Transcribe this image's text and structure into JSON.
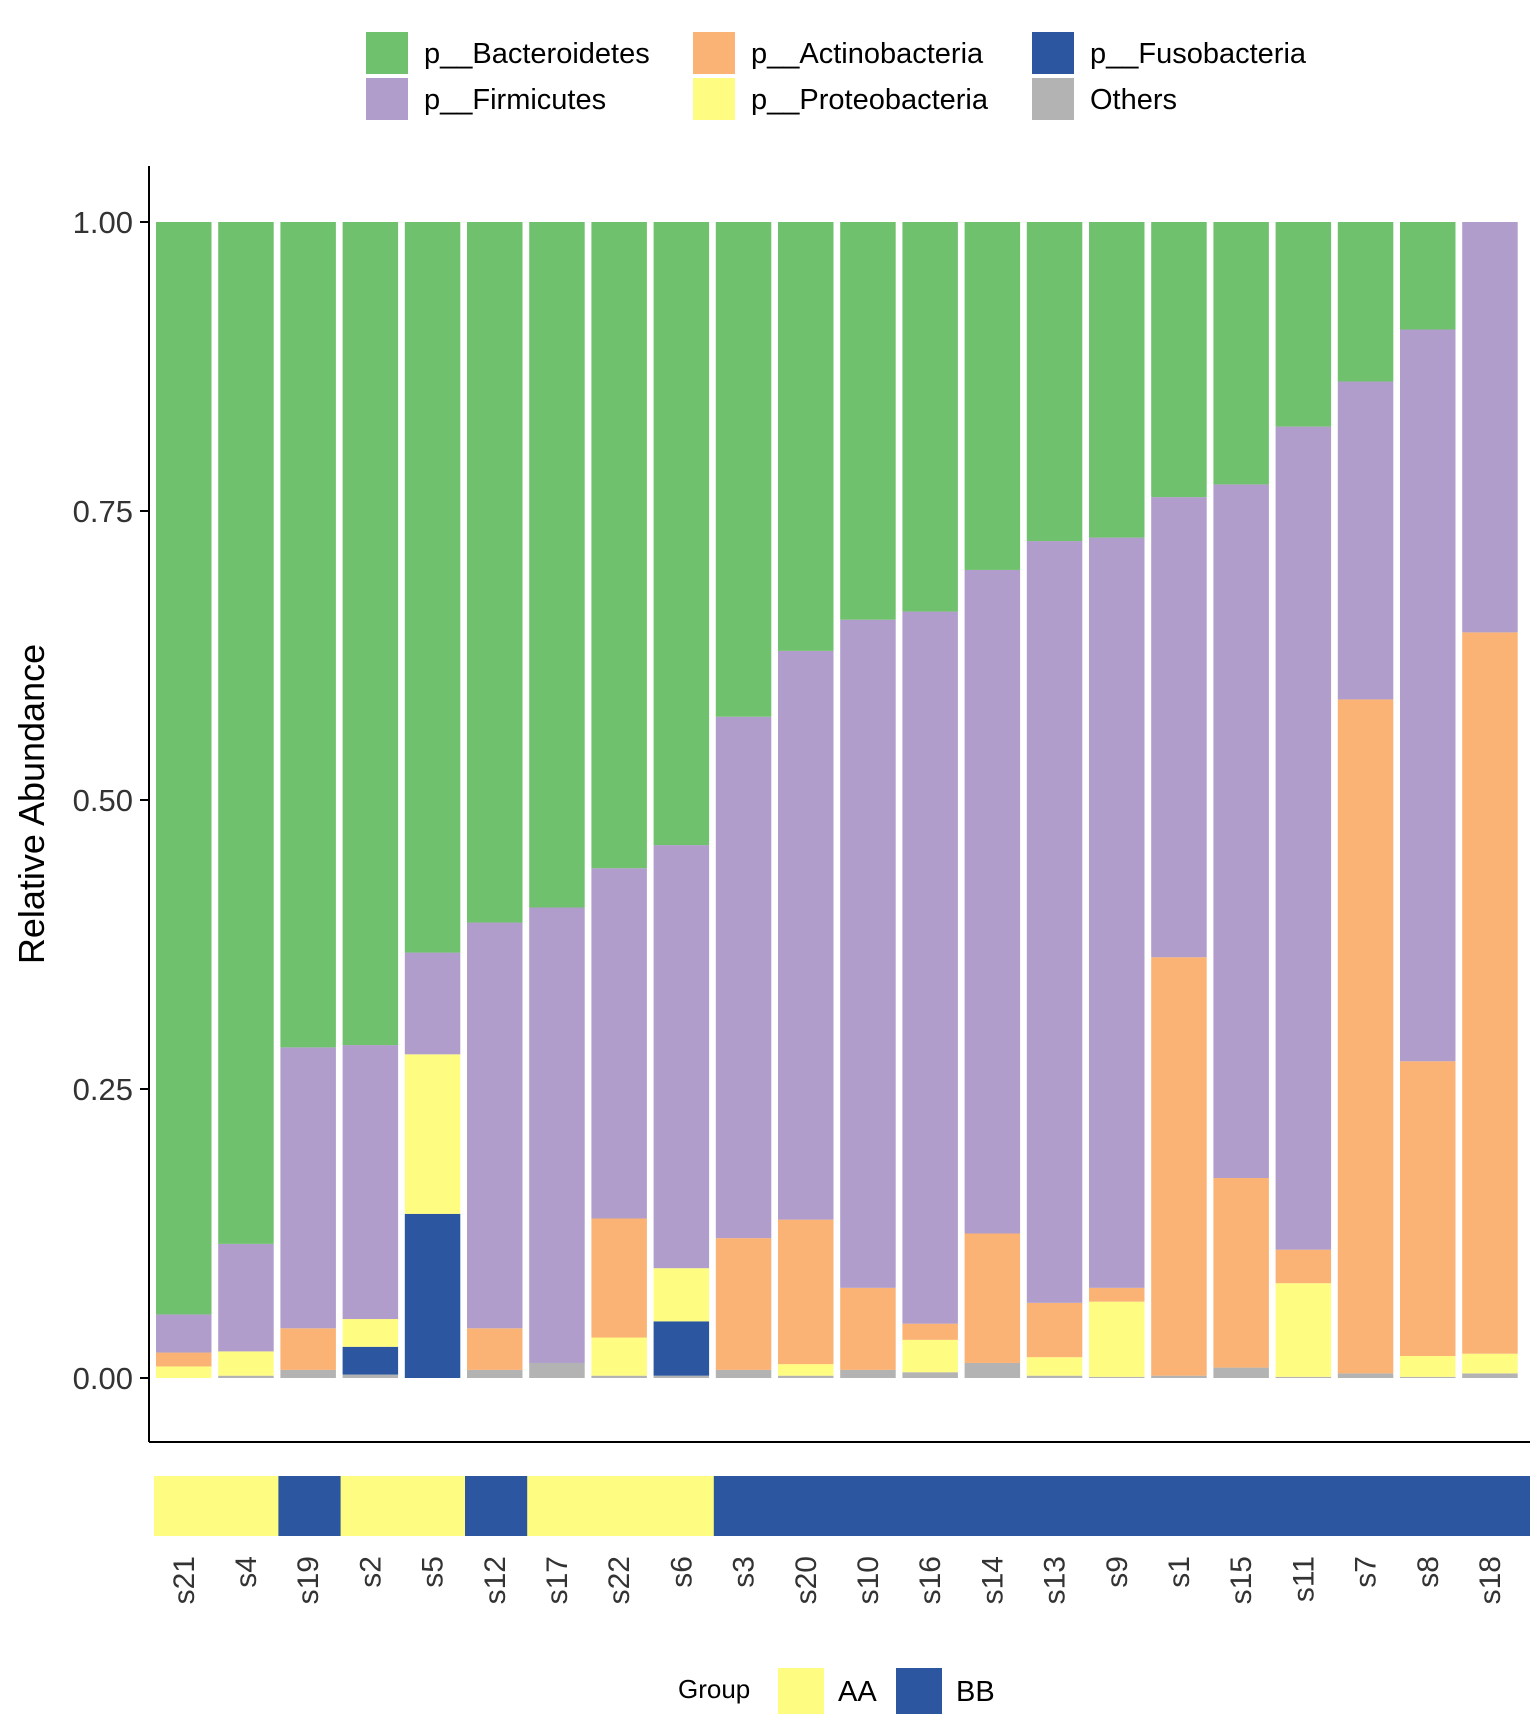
{
  "chart_data": {
    "type": "bar",
    "stacked": true,
    "ylabel": "Relative Abundance",
    "ylim": [
      -0.05,
      1.05
    ],
    "yticks": [
      "0.00",
      "0.25",
      "0.50",
      "0.75",
      "1.00"
    ],
    "ytick_values": [
      0,
      0.25,
      0.5,
      0.75,
      1.0
    ],
    "categories": [
      "s21",
      "s4",
      "s19",
      "s2",
      "s5",
      "s12",
      "s17",
      "s22",
      "s6",
      "s3",
      "s20",
      "s10",
      "s16",
      "s14",
      "s13",
      "s9",
      "s1",
      "s15",
      "s11",
      "s7",
      "s8",
      "s18"
    ],
    "series": [
      {
        "name": "Others",
        "color": "#B3B3B3",
        "values": [
          0.0,
          0.002,
          0.007,
          0.003,
          0.0,
          0.007,
          0.013,
          0.002,
          0.002,
          0.007,
          0.002,
          0.007,
          0.005,
          0.013,
          0.002,
          0.001,
          0.002,
          0.009,
          0.001,
          0.004,
          0.001,
          0.004
        ]
      },
      {
        "name": "p__Fusobacteria",
        "color": "#2C56A0",
        "values": [
          0.0,
          0.0,
          0.0,
          0.024,
          0.142,
          0.0,
          0.0,
          0.0,
          0.047,
          0.0,
          0.0,
          0.0,
          0.0,
          0.0,
          0.0,
          0.0,
          0.0,
          0.0,
          0.0,
          0.0,
          0.0,
          0.0
        ]
      },
      {
        "name": "p__Proteobacteria",
        "color": "#FFFC82",
        "values": [
          0.01,
          0.021,
          0.0,
          0.024,
          0.138,
          0.0,
          0.0,
          0.033,
          0.046,
          0.0,
          0.01,
          0.0,
          0.028,
          0.0,
          0.016,
          0.065,
          0.0,
          0.0,
          0.081,
          0.0,
          0.018,
          0.017
        ]
      },
      {
        "name": "p__Actinobacteria",
        "color": "#FAB374",
        "values": [
          0.012,
          0.0,
          0.036,
          0.0,
          0.0,
          0.036,
          0.0,
          0.103,
          0.0,
          0.114,
          0.125,
          0.071,
          0.014,
          0.112,
          0.047,
          0.012,
          0.362,
          0.164,
          0.029,
          0.583,
          0.255,
          0.624
        ]
      },
      {
        "name": "p__Firmicutes",
        "color": "#B09DCB",
        "values": [
          0.033,
          0.093,
          0.243,
          0.237,
          0.088,
          0.351,
          0.394,
          0.303,
          0.366,
          0.451,
          0.492,
          0.578,
          0.616,
          0.574,
          0.659,
          0.649,
          0.398,
          0.6,
          0.712,
          0.275,
          0.633,
          0.355
        ]
      },
      {
        "name": "p__Bacteroidetes",
        "color": "#70C16D",
        "values": [
          0.945,
          0.884,
          0.714,
          0.712,
          0.632,
          0.606,
          0.593,
          0.559,
          0.539,
          0.428,
          0.371,
          0.344,
          0.337,
          0.301,
          0.276,
          0.273,
          0.238,
          0.227,
          0.177,
          0.138,
          0.093,
          0.0
        ]
      }
    ],
    "legend_top": {
      "placement": "top",
      "entries": [
        {
          "name": "p__Bacteroidetes",
          "color": "#70C16D"
        },
        {
          "name": "p__Firmicutes",
          "color": "#B09DCB"
        },
        {
          "name": "p__Actinobacteria",
          "color": "#FAB374"
        },
        {
          "name": "p__Proteobacteria",
          "color": "#FFFC82"
        },
        {
          "name": "p__Fusobacteria",
          "color": "#2C56A0"
        },
        {
          "name": "Others",
          "color": "#B3B3B3"
        }
      ]
    },
    "group_annotation": {
      "title": "Group",
      "groups": [
        {
          "name": "AA",
          "color": "#FFFC82"
        },
        {
          "name": "BB",
          "color": "#2C56A0"
        }
      ],
      "assignments": [
        "AA",
        "AA",
        "BB",
        "AA",
        "AA",
        "BB",
        "AA",
        "AA",
        "AA",
        "BB",
        "BB",
        "BB",
        "BB",
        "BB",
        "BB",
        "BB",
        "BB",
        "BB",
        "BB",
        "BB",
        "BB",
        "BB"
      ]
    }
  }
}
